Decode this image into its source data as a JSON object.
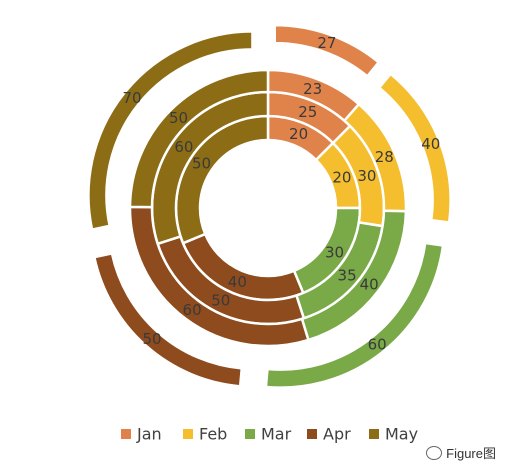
{
  "chart_data": {
    "type": "doughnut",
    "categories": [
      "Jan",
      "Feb",
      "Mar",
      "Apr",
      "May"
    ],
    "colors": [
      "#E0834A",
      "#F5BE2E",
      "#7AA948",
      "#8E4B1E",
      "#8C6D15"
    ],
    "legend_position": "bottom",
    "series": [
      {
        "values": [
          20,
          20,
          30,
          40,
          50
        ]
      },
      {
        "values": [
          25,
          30,
          35,
          50,
          60
        ]
      },
      {
        "values": [
          23,
          28,
          40,
          60,
          50
        ]
      },
      {
        "values": [
          27,
          40,
          60,
          50,
          70
        ]
      }
    ]
  },
  "watermark": {
    "text": "Figure图"
  }
}
